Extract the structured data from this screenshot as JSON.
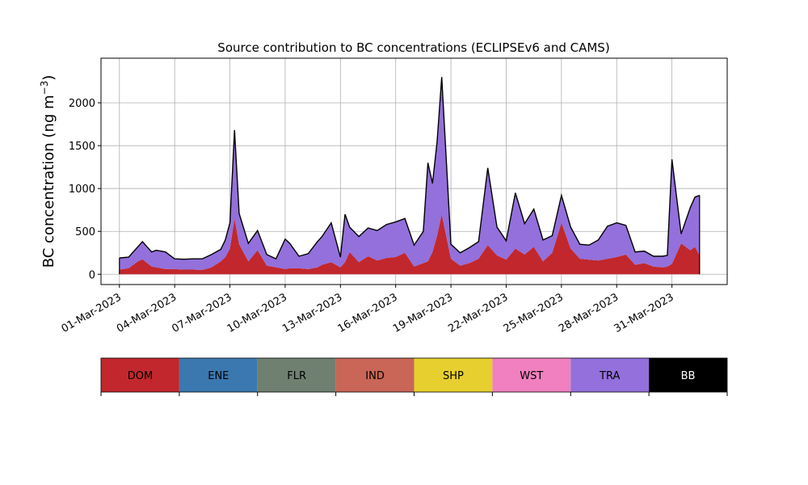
{
  "chart_data": {
    "type": "area",
    "title": "Source contribution to BC concentrations (ECLIPSEv6 and CAMS)",
    "ylabel": "BC concentration (ng m",
    "ylabel_exponent": "−3",
    "ylabel_close": ")",
    "xlabel": "",
    "xlim": [
      "2023-02-28T00:00",
      "2023-04-03T00:00"
    ],
    "ylim": [
      -120,
      2520
    ],
    "y_ticks": [
      0,
      500,
      1000,
      1500,
      2000
    ],
    "x_ticks": [
      "2023-03-01",
      "2023-03-04",
      "2023-03-07",
      "2023-03-10",
      "2023-03-13",
      "2023-03-16",
      "2023-03-19",
      "2023-03-22",
      "2023-03-25",
      "2023-03-28",
      "2023-03-31"
    ],
    "x_tick_labels": [
      "01-Mar-2023",
      "04-Mar-2023",
      "07-Mar-2023",
      "10-Mar-2023",
      "13-Mar-2023",
      "16-Mar-2023",
      "19-Mar-2023",
      "22-Mar-2023",
      "25-Mar-2023",
      "28-Mar-2023",
      "31-Mar-2023"
    ],
    "grid": true,
    "stacked": true,
    "x": [
      "2023-03-01T00:00",
      "2023-03-01T12:00",
      "2023-03-02T00:00",
      "2023-03-02T06:00",
      "2023-03-02T18:00",
      "2023-03-03T00:00",
      "2023-03-03T12:00",
      "2023-03-04T00:00",
      "2023-03-04T12:00",
      "2023-03-05T00:00",
      "2023-03-05T12:00",
      "2023-03-06T00:00",
      "2023-03-06T12:00",
      "2023-03-06T18:00",
      "2023-03-07T00:00",
      "2023-03-07T06:00",
      "2023-03-07T12:00",
      "2023-03-08T00:00",
      "2023-03-08T12:00",
      "2023-03-09T00:00",
      "2023-03-09T12:00",
      "2023-03-10T00:00",
      "2023-03-10T06:00",
      "2023-03-10T18:00",
      "2023-03-11T06:00",
      "2023-03-11T18:00",
      "2023-03-12T00:00",
      "2023-03-12T12:00",
      "2023-03-13T00:00",
      "2023-03-13T06:00",
      "2023-03-13T12:00",
      "2023-03-14T00:00",
      "2023-03-14T12:00",
      "2023-03-15T00:00",
      "2023-03-15T12:00",
      "2023-03-16T00:00",
      "2023-03-16T12:00",
      "2023-03-17T00:00",
      "2023-03-17T12:00",
      "2023-03-17T18:00",
      "2023-03-18T00:00",
      "2023-03-18T06:00",
      "2023-03-18T12:00",
      "2023-03-19T00:00",
      "2023-03-19T12:00",
      "2023-03-20T00:00",
      "2023-03-20T12:00",
      "2023-03-21T00:00",
      "2023-03-21T12:00",
      "2023-03-22T00:00",
      "2023-03-22T12:00",
      "2023-03-23T00:00",
      "2023-03-23T12:00",
      "2023-03-24T00:00",
      "2023-03-24T12:00",
      "2023-03-25T00:00",
      "2023-03-25T12:00",
      "2023-03-26T00:00",
      "2023-03-26T12:00",
      "2023-03-27T00:00",
      "2023-03-27T12:00",
      "2023-03-28T00:00",
      "2023-03-28T12:00",
      "2023-03-29T00:00",
      "2023-03-29T12:00",
      "2023-03-30T00:00",
      "2023-03-30T12:00",
      "2023-03-30T18:00",
      "2023-03-31T00:00",
      "2023-03-31T12:00",
      "2023-04-01T00:00",
      "2023-04-01T06:00",
      "2023-04-01T12:00"
    ],
    "series": [
      {
        "name": "DOM",
        "color": "#c1272d",
        "values": [
          55,
          70,
          150,
          175,
          90,
          80,
          60,
          60,
          55,
          55,
          50,
          80,
          150,
          200,
          300,
          650,
          350,
          150,
          280,
          100,
          80,
          60,
          70,
          70,
          60,
          80,
          110,
          140,
          80,
          140,
          260,
          140,
          210,
          160,
          190,
          200,
          250,
          90,
          130,
          150,
          260,
          450,
          700,
          180,
          100,
          130,
          180,
          340,
          220,
          170,
          300,
          230,
          320,
          150,
          250,
          600,
          300,
          180,
          170,
          160,
          180,
          200,
          230,
          110,
          130,
          90,
          80,
          90,
          120,
          360,
          280,
          320,
          220
        ]
      },
      {
        "name": "ENE",
        "color": "#3b78b0",
        "values": [
          0,
          0,
          0,
          0,
          0,
          0,
          0,
          0,
          0,
          0,
          0,
          0,
          0,
          0,
          0,
          0,
          0,
          0,
          0,
          0,
          0,
          0,
          0,
          0,
          0,
          0,
          0,
          0,
          0,
          0,
          0,
          0,
          0,
          0,
          0,
          0,
          0,
          0,
          0,
          0,
          0,
          0,
          0,
          0,
          0,
          0,
          0,
          0,
          0,
          0,
          0,
          0,
          0,
          0,
          0,
          0,
          0,
          0,
          0,
          0,
          0,
          0,
          0,
          0,
          0,
          0,
          0,
          0,
          0,
          0,
          0,
          0,
          0
        ]
      },
      {
        "name": "FLR",
        "color": "#6f8070",
        "values": [
          0,
          0,
          0,
          0,
          0,
          0,
          0,
          0,
          0,
          0,
          0,
          0,
          0,
          0,
          0,
          0,
          0,
          0,
          0,
          0,
          0,
          0,
          0,
          0,
          0,
          0,
          0,
          0,
          0,
          0,
          0,
          0,
          0,
          0,
          0,
          0,
          0,
          0,
          0,
          0,
          0,
          0,
          0,
          0,
          0,
          0,
          0,
          0,
          0,
          0,
          0,
          0,
          0,
          0,
          0,
          0,
          0,
          0,
          0,
          0,
          0,
          0,
          0,
          0,
          0,
          0,
          0,
          0,
          0,
          0,
          0,
          0,
          0
        ]
      },
      {
        "name": "IND",
        "color": "#c96657",
        "values": [
          0,
          0,
          0,
          0,
          0,
          0,
          0,
          0,
          0,
          0,
          0,
          0,
          0,
          0,
          0,
          0,
          0,
          0,
          0,
          0,
          0,
          0,
          0,
          0,
          0,
          0,
          0,
          0,
          0,
          0,
          0,
          0,
          0,
          0,
          0,
          0,
          0,
          0,
          0,
          0,
          0,
          0,
          0,
          0,
          0,
          0,
          0,
          0,
          0,
          0,
          0,
          0,
          0,
          0,
          0,
          0,
          0,
          0,
          0,
          0,
          0,
          0,
          0,
          0,
          0,
          0,
          0,
          0,
          0,
          0,
          0,
          0,
          0
        ]
      },
      {
        "name": "SHP",
        "color": "#e6cf2e",
        "values": [
          0,
          0,
          0,
          0,
          0,
          0,
          0,
          0,
          0,
          0,
          0,
          0,
          0,
          0,
          0,
          0,
          0,
          0,
          0,
          0,
          0,
          0,
          0,
          0,
          0,
          0,
          0,
          0,
          0,
          0,
          0,
          0,
          0,
          0,
          0,
          0,
          0,
          0,
          0,
          0,
          0,
          0,
          0,
          0,
          0,
          0,
          0,
          0,
          0,
          0,
          0,
          0,
          0,
          0,
          0,
          0,
          0,
          0,
          0,
          0,
          0,
          0,
          0,
          0,
          0,
          0,
          0,
          0,
          0,
          0,
          0,
          0,
          0
        ]
      },
      {
        "name": "WST",
        "color": "#f080bf",
        "values": [
          0,
          0,
          0,
          0,
          0,
          0,
          0,
          0,
          0,
          0,
          0,
          0,
          0,
          0,
          0,
          0,
          0,
          0,
          0,
          0,
          0,
          0,
          0,
          0,
          0,
          0,
          0,
          0,
          0,
          0,
          0,
          0,
          0,
          0,
          0,
          0,
          0,
          0,
          0,
          0,
          0,
          0,
          0,
          0,
          0,
          0,
          0,
          0,
          0,
          0,
          0,
          0,
          0,
          0,
          0,
          0,
          0,
          0,
          0,
          0,
          0,
          0,
          0,
          0,
          0,
          0,
          0,
          0,
          0,
          0,
          0,
          0,
          0
        ]
      },
      {
        "name": "TRA",
        "color": "#9370db",
        "values": [
          135,
          130,
          170,
          205,
          170,
          200,
          200,
          120,
          120,
          125,
          130,
          150,
          140,
          200,
          300,
          1030,
          360,
          210,
          230,
          130,
          100,
          350,
          290,
          140,
          180,
          300,
          330,
          460,
          120,
          560,
          290,
          300,
          330,
          350,
          390,
          410,
          400,
          250,
          370,
          1150,
          800,
          1100,
          1600,
          170,
          150,
          180,
          200,
          900,
          330,
          220,
          650,
          360,
          440,
          250,
          200,
          320,
          250,
          170,
          170,
          240,
          380,
          400,
          340,
          150,
          140,
          120,
          130,
          130,
          1220,
          110,
          500,
          580,
          700
        ]
      },
      {
        "name": "BB",
        "color": "#000000",
        "values": [
          0,
          0,
          0,
          0,
          0,
          0,
          0,
          0,
          0,
          0,
          0,
          0,
          0,
          0,
          0,
          0,
          0,
          0,
          0,
          0,
          0,
          0,
          0,
          0,
          0,
          0,
          0,
          0,
          0,
          0,
          0,
          0,
          0,
          0,
          0,
          0,
          0,
          0,
          0,
          0,
          0,
          0,
          0,
          0,
          0,
          0,
          0,
          0,
          0,
          0,
          0,
          0,
          0,
          0,
          0,
          0,
          0,
          0,
          0,
          0,
          0,
          0,
          0,
          0,
          0,
          0,
          0,
          0,
          0,
          0,
          0,
          0,
          0
        ]
      }
    ],
    "legend": {
      "placement": "bottom",
      "entries": [
        {
          "label": "DOM",
          "color": "#c1272d",
          "text_color": "#000000"
        },
        {
          "label": "ENE",
          "color": "#3b78b0",
          "text_color": "#000000"
        },
        {
          "label": "FLR",
          "color": "#6f8070",
          "text_color": "#000000"
        },
        {
          "label": "IND",
          "color": "#c96657",
          "text_color": "#000000"
        },
        {
          "label": "SHP",
          "color": "#e6cf2e",
          "text_color": "#000000"
        },
        {
          "label": "WST",
          "color": "#f080bf",
          "text_color": "#000000"
        },
        {
          "label": "TRA",
          "color": "#9370db",
          "text_color": "#000000"
        },
        {
          "label": "BB",
          "color": "#000000",
          "text_color": "#ffffff"
        }
      ]
    }
  }
}
